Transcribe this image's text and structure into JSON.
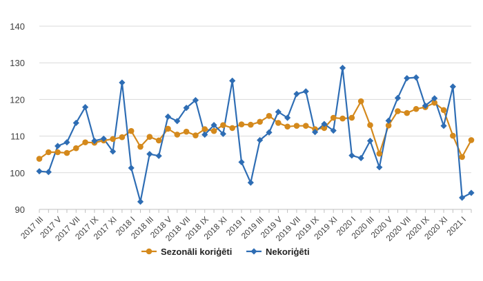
{
  "chart_data": {
    "type": "line",
    "ylim": [
      90,
      140
    ],
    "yticks": [
      90,
      100,
      110,
      120,
      130,
      140
    ],
    "x": [
      "2017 III",
      "2017 IV",
      "2017 V",
      "2017 VI",
      "2017 VII",
      "2017 VIII",
      "2017 IX",
      "2017 X",
      "2017 XI",
      "2017 XII",
      "2018 I",
      "2018 II",
      "2018 III",
      "2018 IV",
      "2018 V",
      "2018 VI",
      "2018 VII",
      "2018 VIII",
      "2018 IX",
      "2018 X",
      "2018 XI",
      "2018 XII",
      "2019 I",
      "2019 II",
      "2019 III",
      "2019 IV",
      "2019 V",
      "2019 VI",
      "2019 VII",
      "2019 VIII",
      "2019 IX",
      "2019 X",
      "2019 XI",
      "2019 XII",
      "2020 I",
      "2020 II",
      "2020 III",
      "2020 IV",
      "2020 V",
      "2020 VI",
      "2020 VII",
      "2020 VIII",
      "2020 IX",
      "2020 X",
      "2020 XI",
      "2020 XII",
      "2021 I",
      "2021 II"
    ],
    "xtick_labels": [
      "2017 III",
      "2017 V",
      "2017 VII",
      "2017 IX",
      "2017 XI",
      "2018 I",
      "2018 III",
      "2018 V",
      "2018 VII",
      "2018 IX",
      "2018 XI",
      "2019 I",
      "2019 III",
      "2019 V",
      "2019 VII",
      "2019 IX",
      "2019 XI",
      "2020 I",
      "2020 III",
      "2020 V",
      "2020 VII",
      "2020 IX",
      "2020 XI",
      "2021 I"
    ],
    "grid": true,
    "legend_position": "bottom",
    "series": [
      {
        "name": "Sezonāli koriģēti",
        "color": "#d4891c",
        "marker": "circle",
        "values": [
          103.8,
          105.6,
          105.6,
          105.4,
          106.7,
          108.3,
          108.2,
          108.8,
          109.2,
          109.7,
          111.4,
          107.1,
          109.8,
          108.8,
          112.0,
          110.4,
          111.2,
          110.2,
          111.9,
          111.4,
          113.0,
          112.2,
          113.2,
          113.1,
          113.9,
          115.5,
          113.6,
          112.6,
          112.8,
          112.8,
          111.9,
          112.2,
          115.0,
          114.8,
          115.0,
          119.5,
          113.0,
          105.2,
          112.9,
          116.8,
          116.3,
          117.4,
          117.9,
          119.1,
          117.1,
          110.1,
          104.3,
          108.9
        ]
      },
      {
        "name": "Nekoriģēti",
        "color": "#2e6db4",
        "marker": "diamond",
        "values": [
          100.4,
          100.2,
          107.3,
          108.3,
          113.6,
          117.9,
          108.7,
          109.3,
          105.8,
          124.6,
          101.3,
          92.1,
          105.1,
          104.6,
          115.3,
          114.1,
          117.7,
          119.8,
          110.4,
          113.0,
          110.6,
          125.1,
          102.9,
          97.3,
          108.9,
          111.0,
          116.6,
          115.0,
          121.5,
          122.2,
          111.1,
          113.3,
          111.5,
          128.6,
          104.7,
          104.0,
          108.7,
          101.5,
          114.2,
          120.4,
          125.8,
          126.0,
          118.3,
          120.3,
          112.8,
          123.5,
          93.2,
          94.5
        ]
      }
    ]
  }
}
